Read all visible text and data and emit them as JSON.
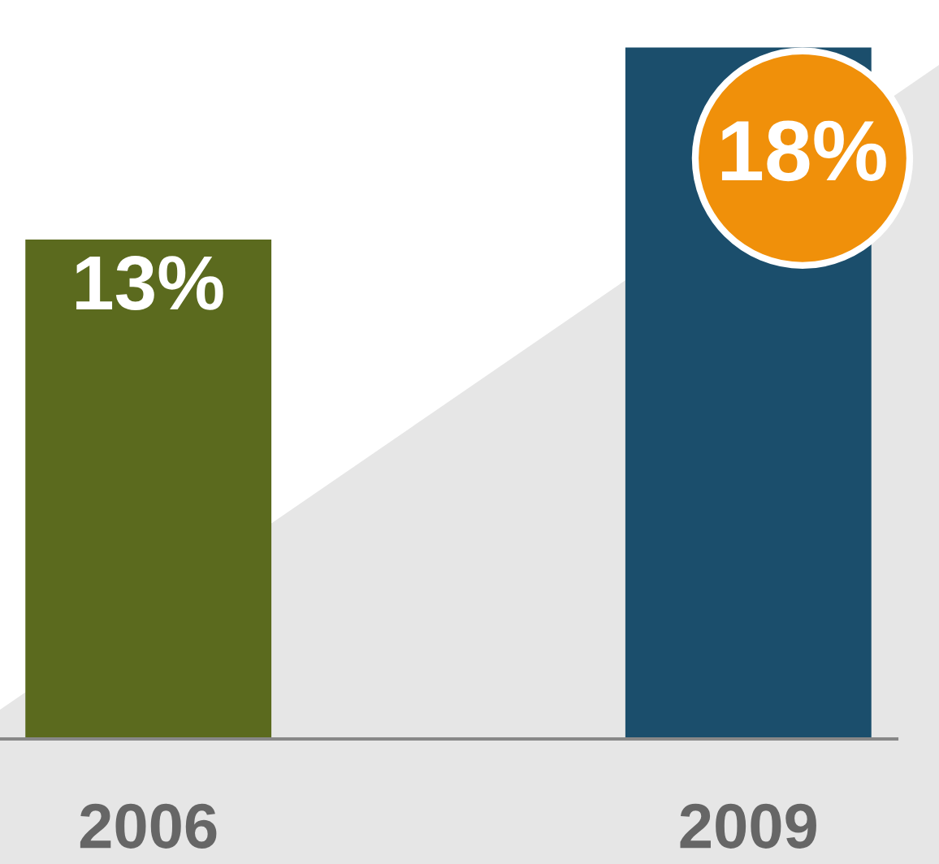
{
  "chart_data": {
    "type": "bar",
    "categories": [
      "2006",
      "2009"
    ],
    "values": [
      13,
      18
    ],
    "colors": [
      "#5b6a1e",
      "#1b4e6c"
    ],
    "value_labels": [
      "13%",
      "18%"
    ],
    "grid": false
  }
}
